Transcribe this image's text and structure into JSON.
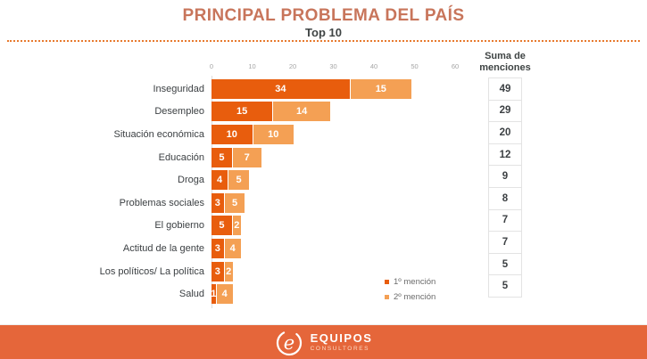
{
  "header": {
    "title": "PRINCIPAL PROBLEMA DEL PAÍS",
    "subtitle": "Top 10"
  },
  "colors": {
    "title_accent": "#C8755B",
    "divider_orange": "#E87A2E",
    "first_mention": "#E85D0D",
    "second_mention": "#F4A054",
    "footer_band": "#E5663A"
  },
  "chart_data": {
    "type": "bar",
    "orientation": "horizontal",
    "stacked": true,
    "title": "PRINCIPAL PROBLEMA DEL PAÍS",
    "subtitle": "Top 10",
    "categories": [
      "Inseguridad",
      "Desempleo",
      "Situación económica",
      "Educación",
      "Droga",
      "Problemas sociales",
      "El gobierno",
      "Actitud de la gente",
      "Los políticos/ La política",
      "Salud"
    ],
    "series": [
      {
        "name": "1º mención",
        "color": "#E85D0D",
        "values": [
          34,
          15,
          10,
          5,
          4,
          3,
          5,
          3,
          3,
          1
        ]
      },
      {
        "name": "2º mención",
        "color": "#F4A054",
        "values": [
          15,
          14,
          10,
          7,
          5,
          5,
          2,
          4,
          2,
          4
        ]
      }
    ],
    "totals": [
      49,
      29,
      20,
      12,
      9,
      8,
      7,
      7,
      5,
      5
    ],
    "sum_column_header": "Suma de\nmenciones",
    "x_ticks": [
      0,
      10,
      20,
      30,
      40,
      50,
      60
    ],
    "xlim": [
      0,
      60
    ],
    "grid": false,
    "legend_position": "right-bottom",
    "data_labels": "inside-white"
  },
  "footer": {
    "brand": "EQUIPOS",
    "brand_sub": "CONSULTORES",
    "logo": "equipos-script-e-icon"
  }
}
